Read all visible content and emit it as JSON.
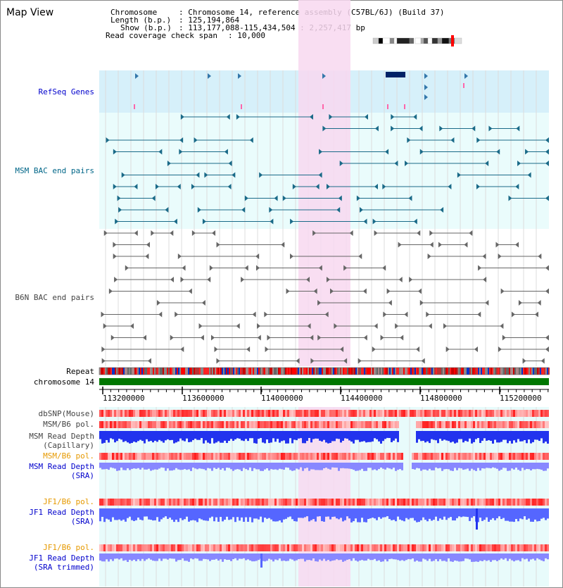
{
  "title": "Map View",
  "info": {
    "chromosome_label": "Chromosome",
    "chromosome_value": ": Chromosome 14, reference assembly (C57BL/6J) (Build 37)",
    "length_label": "Length (b.p.)",
    "length_value": ": 125,194,864",
    "show_label": "Show (b.p.)",
    "show_value": ": 113,177,088-115,434,504 : 2,257,417 bp",
    "span_label": "Read coverage check span",
    "span_value": ": 10,000"
  },
  "tracks": {
    "refseq": "RefSeq Genes",
    "msm_bac": "MSM BAC end pairs",
    "b6n_bac": "B6N BAC end pairs",
    "repeat": "Repeat",
    "chromosome": "chromosome 14",
    "dbsnp": "dbSNP(Mouse)",
    "msm_pol_cap": "MSM/B6 pol.",
    "msm_depth_cap_1": "MSM Read Depth",
    "msm_depth_cap_2": "(Capillary)",
    "msm_pol_sra": "MSM/B6 pol.",
    "msm_depth_sra_1": "MSM Read Depth",
    "msm_depth_sra_2": "(SRA)",
    "jf1_pol_sra": "JF1/B6 pol.",
    "jf1_depth_sra_1": "JF1 Read Depth",
    "jf1_depth_sra_2": "(SRA)",
    "jf1_pol_trim": "JF1/B6 pol.",
    "jf1_depth_trim_1": "JF1 Read Depth",
    "jf1_depth_trim_2": "(SRA trimmed)"
  },
  "axis": {
    "ticks": [
      "113200000",
      "113600000",
      "114000000",
      "114400000",
      "114800000",
      "115200000"
    ]
  },
  "colors": {
    "refseq_label": "#0000cc",
    "msm_label": "#006688",
    "b6n_label": "#444444",
    "pol_label": "#e69900",
    "depth_label": "#0000cc",
    "highlight": "#f8d8f0",
    "chromosome_bar": "#007700"
  }
}
